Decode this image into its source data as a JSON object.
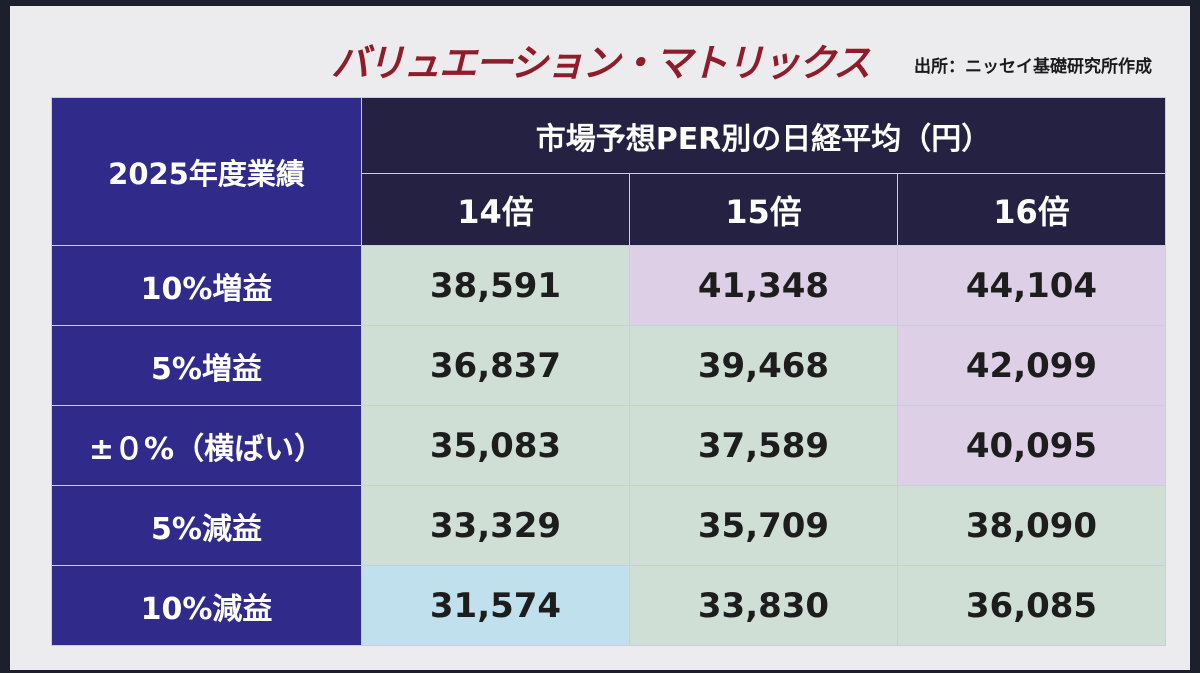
{
  "title": "バリュエーション・マトリックス",
  "source": "出所：ニッセイ基礎研究所作成",
  "table": {
    "corner_label": "2025年度業績",
    "group_header": "市場予想PER別の日経平均（円）",
    "columns": [
      "14倍",
      "15倍",
      "16倍"
    ],
    "rows": [
      {
        "label": "10%増益",
        "values": [
          "38,591",
          "41,348",
          "44,104"
        ]
      },
      {
        "label": "5%増益",
        "values": [
          "36,837",
          "39,468",
          "42,099"
        ]
      },
      {
        "label": "±０%（横ばい）",
        "values": [
          "35,083",
          "37,589",
          "40,095"
        ]
      },
      {
        "label": "5%減益",
        "values": [
          "33,329",
          "35,709",
          "38,090"
        ]
      },
      {
        "label": "10%減益",
        "values": [
          "31,574",
          "33,830",
          "36,085"
        ]
      }
    ]
  },
  "colors": {
    "title": "#8e1c2a",
    "header_bg": "#242142",
    "row_header_bg": "#302b8a",
    "cell_green": "#cfdfd6",
    "cell_purple": "#ddcfe6",
    "cell_blue": "#bfe0ec"
  }
}
